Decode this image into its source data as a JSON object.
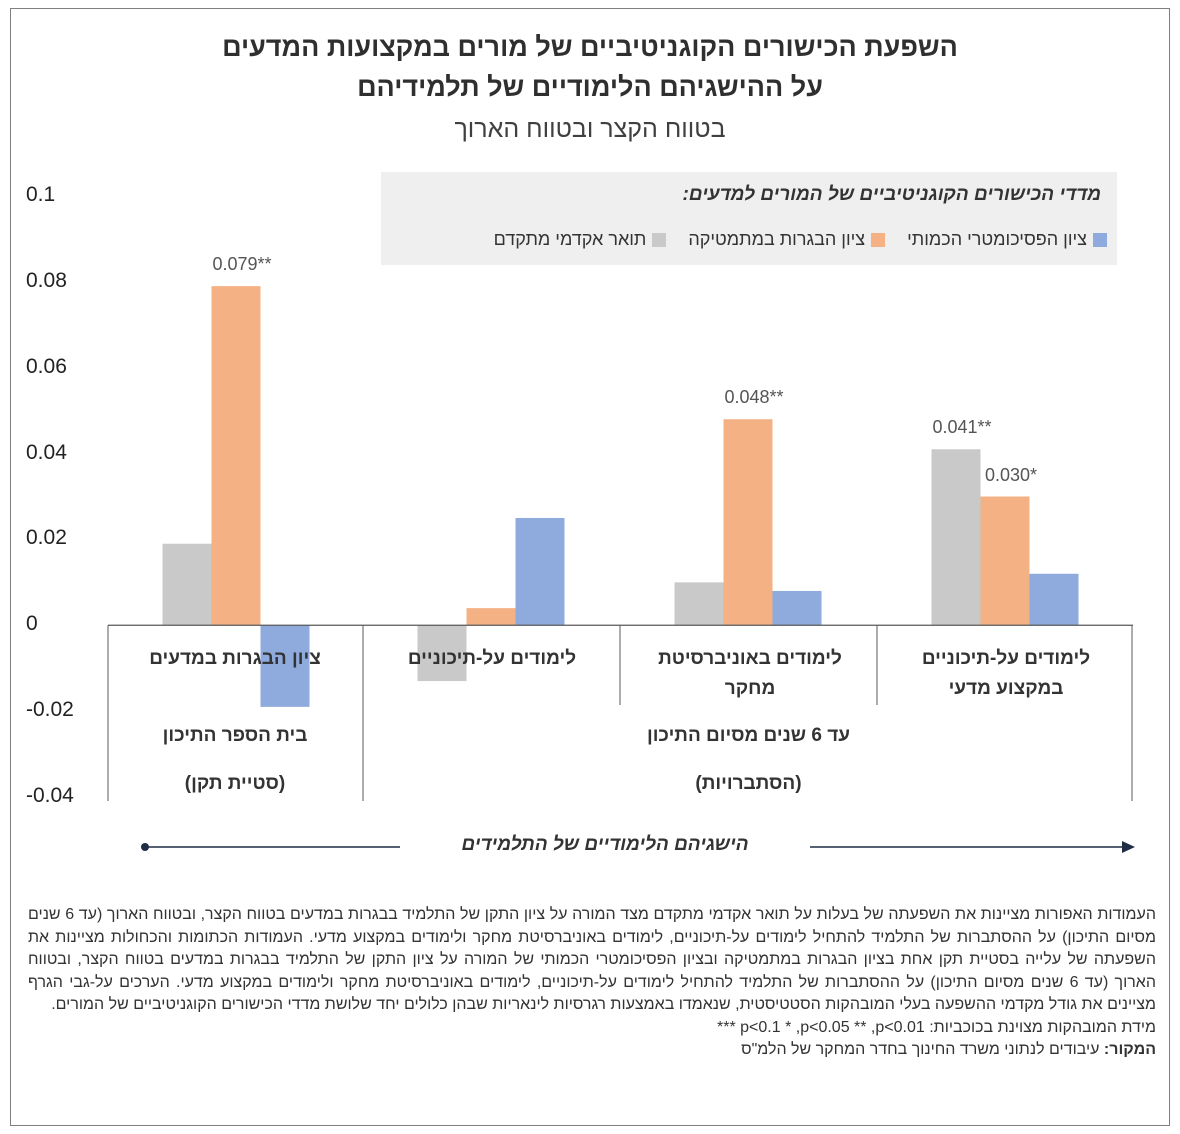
{
  "title_line1": "השפעת הכישורים הקוגניטיביים של מורים במקצועות המדעים",
  "title_line2": "על ההישגיהם הלימודיים של תלמידיהם",
  "subtitle": "בטווח הקצר ובטווח הארוך",
  "legend": {
    "title": "מדדי הכישורים הקוגניטיביים של המורים למדעים:",
    "items": [
      {
        "label": "ציון הפסיכומטרי הכמותי",
        "color": "#8faadc"
      },
      {
        "label": "ציון הבגרות במתמטיקה",
        "color": "#f4b183"
      },
      {
        "label": "תואר אקדמי מתקדם",
        "color": "#c9c9c9"
      }
    ]
  },
  "chart_data": {
    "type": "bar",
    "categories": [
      "ציון הבגרות במדעים",
      "לימודים על-תיכוניים",
      "לימודים באוניברסיטת מחקר",
      "לימודים על-תיכוניים במקצוע מדעי"
    ],
    "series": [
      {
        "name": "תואר אקדמי מתקדם",
        "color": "#c9c9c9",
        "values": [
          0.019,
          -0.013,
          0.01,
          0.041
        ],
        "labels": [
          "",
          "",
          "",
          "0.041**"
        ]
      },
      {
        "name": "ציון הבגרות במתמטיקה",
        "color": "#f4b183",
        "values": [
          0.079,
          0.004,
          0.048,
          0.03
        ],
        "labels": [
          "0.079**",
          "",
          "0.048**",
          "0.030*"
        ]
      },
      {
        "name": "ציון הפסיכומטרי הכמותי",
        "color": "#8faadc",
        "values": [
          -0.019,
          0.025,
          0.008,
          0.012
        ],
        "labels": [
          "",
          "",
          "",
          ""
        ]
      }
    ],
    "ylim": [
      -0.04,
      0.1
    ],
    "yticks": [
      "0.1",
      "0.08",
      "0.06",
      "0.04",
      "0.02",
      "0",
      "-0.02",
      "-0.04"
    ],
    "groups": [
      {
        "line1": "בית הספר התיכון",
        "line2": "(סטיית תקן)"
      },
      {
        "line1": "עד 6 שנים מסיום התיכון",
        "line2": "(הסתברויות)"
      }
    ],
    "axis_caption": "הישגיהם הלימודיים של התלמידים"
  },
  "notes": {
    "paragraph": "העמודות האפורות מציינות את השפעתה של בעלות על תואר אקדמי מתקדם מצד המורה על ציון התקן של התלמיד בבגרות במדעים בטווח הקצר, ובטווח הארוך (עד 6 שנים מסיום התיכון) על ההסתברות של התלמיד להתחיל לימודים על-תיכוניים, לימודים באוניברסיטת מחקר ולימודים במקצוע מדעי. העמודות הכתומות והכחולות מציינות את השפעתה של עלייה בסטיית תקן אחת בציון הבגרות במתמטיקה ובציון הפסיכומטרי הכמותי של המורה על ציון התקן של התלמיד בבגרות במדעים בטווח הקצר, ובטווח הארוך (עד 6 שנים מסיום התיכון) על ההסתברות של התלמיד להתחיל לימודים על-תיכוניים, לימודים באוניברסיטת מחקר ולימודים במקצוע מדעי. הערכים על-גבי הגרף מציינים את גודל מקדמי ההשפעה בעלי המובהקות הסטטיסטית, שנאמדו באמצעות רגרסיות לינאריות שבהן כלולים יחד שלושת מדדי הכישורים הקוגניטיביים של המורים.",
    "significance": "מידת המובהקות מצוינת בכוכביות: p<0.1 * ,p<0.05 ** ,p<0.01 ***",
    "source_key": "המקור:",
    "source_text": " עיבודים לנתוני משרד החינוך בחדר המחקר של הלמ\"ס"
  }
}
